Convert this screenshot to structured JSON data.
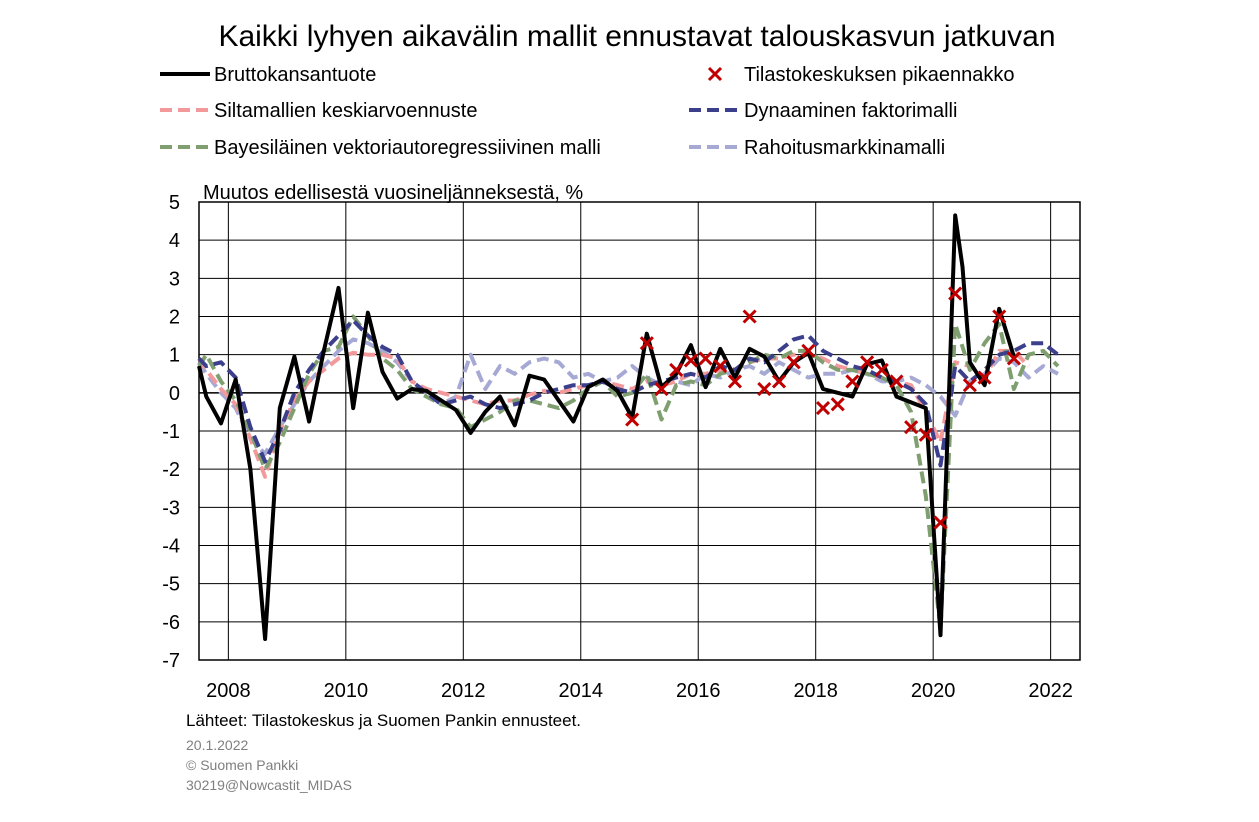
{
  "chart_data": {
    "type": "line",
    "title": "Kaikki lyhyen aikavälin mallit ennustavat talouskasvun jatkuvan",
    "ylabel": "Muutos edellisestä vuosineljänneksestä, %",
    "xlim": [
      2007.5,
      2022.5
    ],
    "ylim": [
      -7,
      5
    ],
    "yticks": [
      5,
      4,
      3,
      2,
      1,
      0,
      -1,
      -2,
      -3,
      -4,
      -5,
      -6,
      -7
    ],
    "xticks": [
      2008,
      2010,
      2012,
      2014,
      2016,
      2018,
      2020,
      2022
    ],
    "grid": true,
    "legend_position": "top",
    "series": [
      {
        "name": "Bruttokansantuote",
        "style": "solid",
        "color": "#000000",
        "x": [
          2007.5,
          2007.625,
          2007.875,
          2008.125,
          2008.375,
          2008.625,
          2008.875,
          2009.125,
          2009.375,
          2009.625,
          2009.875,
          2010.125,
          2010.375,
          2010.625,
          2010.875,
          2011.125,
          2011.375,
          2011.625,
          2011.875,
          2012.125,
          2012.375,
          2012.625,
          2012.875,
          2013.125,
          2013.375,
          2013.625,
          2013.875,
          2014.125,
          2014.375,
          2014.625,
          2014.875,
          2015.125,
          2015.375,
          2015.625,
          2015.875,
          2016.125,
          2016.375,
          2016.625,
          2016.875,
          2017.125,
          2017.375,
          2017.625,
          2017.875,
          2018.125,
          2018.375,
          2018.625,
          2018.875,
          2019.125,
          2019.375,
          2019.625,
          2019.875,
          2020.125,
          2020.375,
          2020.5,
          2020.625,
          2020.875,
          2021.125,
          2021.375
        ],
        "y": [
          0.7,
          -0.1,
          -0.8,
          0.35,
          -2.0,
          -6.45,
          -0.4,
          0.95,
          -0.75,
          1.1,
          2.75,
          -0.4,
          2.1,
          0.55,
          -0.15,
          0.1,
          0.05,
          -0.2,
          -0.45,
          -1.05,
          -0.5,
          -0.1,
          -0.85,
          0.45,
          0.35,
          -0.2,
          -0.75,
          0.15,
          0.35,
          0.05,
          -0.65,
          1.55,
          0.15,
          0.5,
          1.25,
          0.15,
          1.15,
          0.4,
          1.15,
          0.95,
          0.3,
          0.8,
          1.05,
          0.1,
          0.0,
          -0.1,
          0.75,
          0.85,
          -0.1,
          -0.25,
          -0.4,
          -6.35,
          4.65,
          3.3,
          0.8,
          0.2,
          2.2,
          0.95
        ]
      },
      {
        "name": "Siltamallien keskiarvoennuste",
        "style": "dashed",
        "color": "#f4999b",
        "x": [
          2007.5,
          2007.625,
          2007.875,
          2008.125,
          2008.375,
          2008.625,
          2008.875,
          2009.125,
          2009.375,
          2009.625,
          2009.875,
          2010.125,
          2010.375,
          2010.625,
          2010.875,
          2011.125,
          2011.375,
          2011.625,
          2011.875,
          2012.125,
          2012.375,
          2012.625,
          2012.875,
          2013.125,
          2013.375,
          2013.625,
          2013.875,
          2014.125,
          2014.375,
          2014.625,
          2014.875,
          2015.125,
          2015.375,
          2015.625,
          2015.875,
          2016.125,
          2016.375,
          2016.625,
          2016.875,
          2017.125,
          2017.375,
          2017.625,
          2017.875,
          2018.125,
          2018.375,
          2018.625,
          2018.875,
          2019.125,
          2019.375,
          2019.625,
          2019.875,
          2020.125,
          2020.375,
          2020.625,
          2020.875,
          2021.125,
          2021.375,
          2021.625
        ],
        "y": [
          0.9,
          0.6,
          0.1,
          -0.3,
          -1.2,
          -2.2,
          -1.0,
          -0.2,
          0.3,
          0.6,
          0.9,
          1.05,
          1.0,
          1.0,
          0.9,
          0.3,
          0.1,
          0.0,
          -0.1,
          -0.2,
          -0.3,
          -0.2,
          -0.2,
          -0.05,
          0.05,
          0.0,
          0.1,
          0.2,
          0.3,
          0.2,
          0.1,
          0.3,
          0.2,
          0.3,
          0.5,
          0.5,
          0.6,
          0.6,
          0.8,
          0.9,
          0.9,
          1.0,
          1.0,
          0.9,
          0.7,
          0.6,
          0.5,
          0.4,
          0.3,
          0.2,
          -0.5,
          -1.3,
          0.8,
          0.7,
          0.4,
          1.1,
          1.1,
          0.7
        ]
      },
      {
        "name": "Dynaaminen faktorimalli",
        "style": "dashed",
        "color": "#3c3f8c",
        "x": [
          2007.5,
          2007.625,
          2007.875,
          2008.125,
          2008.375,
          2008.625,
          2008.875,
          2009.125,
          2009.375,
          2009.625,
          2009.875,
          2010.125,
          2010.375,
          2010.625,
          2010.875,
          2011.125,
          2011.375,
          2011.625,
          2011.875,
          2012.125,
          2012.375,
          2012.625,
          2012.875,
          2013.125,
          2013.375,
          2013.625,
          2013.875,
          2014.125,
          2014.375,
          2014.625,
          2014.875,
          2015.125,
          2015.375,
          2015.625,
          2015.875,
          2016.125,
          2016.375,
          2016.625,
          2016.875,
          2017.125,
          2017.375,
          2017.625,
          2017.875,
          2018.125,
          2018.375,
          2018.625,
          2018.875,
          2019.125,
          2019.375,
          2019.625,
          2019.875,
          2020.125,
          2020.375,
          2020.625,
          2020.875,
          2021.125,
          2021.375,
          2021.625,
          2021.875,
          2022.125
        ],
        "y": [
          0.9,
          0.7,
          0.8,
          0.4,
          -0.9,
          -1.8,
          -1.0,
          0.0,
          0.6,
          1.1,
          1.5,
          1.9,
          1.5,
          1.2,
          1.0,
          0.3,
          0.0,
          -0.3,
          -0.2,
          -0.1,
          -0.3,
          -0.4,
          -0.3,
          -0.2,
          0.0,
          0.1,
          0.2,
          0.2,
          0.3,
          0.1,
          0.0,
          0.2,
          0.3,
          0.4,
          0.5,
          0.4,
          0.7,
          0.6,
          0.9,
          0.8,
          1.1,
          1.4,
          1.5,
          1.1,
          0.9,
          0.7,
          0.6,
          0.4,
          0.3,
          0.1,
          -0.3,
          -1.9,
          0.7,
          0.3,
          0.6,
          1.0,
          1.1,
          1.3,
          1.3,
          1.0
        ]
      },
      {
        "name": "Bayesiläinen vektoriautoregressiivinen malli",
        "style": "dashed",
        "color": "#7f9f70",
        "x": [
          2007.5,
          2007.625,
          2007.875,
          2008.125,
          2008.375,
          2008.625,
          2008.875,
          2009.125,
          2009.375,
          2009.625,
          2009.875,
          2010.125,
          2010.375,
          2010.625,
          2010.875,
          2011.125,
          2011.375,
          2011.625,
          2011.875,
          2012.125,
          2012.375,
          2012.625,
          2012.875,
          2013.125,
          2013.375,
          2013.625,
          2013.875,
          2014.125,
          2014.375,
          2014.625,
          2014.875,
          2015.125,
          2015.375,
          2015.625,
          2015.875,
          2016.125,
          2016.375,
          2016.625,
          2016.875,
          2017.125,
          2017.375,
          2017.625,
          2017.875,
          2018.125,
          2018.375,
          2018.625,
          2018.875,
          2019.125,
          2019.375,
          2019.625,
          2019.875,
          2020.125,
          2020.375,
          2020.625,
          2020.875,
          2021.125,
          2021.375,
          2021.625,
          2021.875,
          2022.125
        ],
        "y": [
          0.7,
          1.0,
          0.3,
          -0.2,
          -1.0,
          -2.0,
          -1.3,
          -0.4,
          0.5,
          1.1,
          1.2,
          2.0,
          1.5,
          0.9,
          0.6,
          0.1,
          -0.1,
          -0.3,
          -0.4,
          -0.9,
          -0.7,
          -0.5,
          -0.2,
          -0.2,
          -0.3,
          -0.4,
          -0.2,
          0.1,
          0.3,
          -0.1,
          0.0,
          0.5,
          -0.7,
          0.2,
          0.3,
          0.2,
          0.5,
          0.6,
          0.8,
          1.0,
          0.9,
          1.1,
          1.1,
          0.8,
          0.6,
          0.6,
          0.5,
          0.4,
          0.2,
          -0.5,
          -2.7,
          -6.2,
          1.8,
          0.6,
          1.3,
          1.8,
          0.1,
          1.0,
          1.1,
          0.7
        ]
      },
      {
        "name": "Rahoitusmarkkinamalli",
        "style": "dashed",
        "color": "#a6a9d4",
        "x": [
          2007.5,
          2007.625,
          2007.875,
          2008.125,
          2008.375,
          2008.625,
          2008.875,
          2009.125,
          2009.375,
          2009.625,
          2009.875,
          2010.125,
          2010.375,
          2010.625,
          2010.875,
          2011.125,
          2011.375,
          2011.625,
          2011.875,
          2012.125,
          2012.375,
          2012.625,
          2012.875,
          2013.125,
          2013.375,
          2013.625,
          2013.875,
          2014.125,
          2014.375,
          2014.625,
          2014.875,
          2015.125,
          2015.375,
          2015.625,
          2015.875,
          2016.125,
          2016.375,
          2016.625,
          2016.875,
          2017.125,
          2017.375,
          2017.625,
          2017.875,
          2018.125,
          2018.375,
          2018.625,
          2018.875,
          2019.125,
          2019.375,
          2019.625,
          2019.875,
          2020.125,
          2020.375,
          2020.625,
          2020.875,
          2021.125,
          2021.375,
          2021.625,
          2021.875,
          2022.125
        ],
        "y": [
          0.8,
          0.5,
          0.0,
          -0.4,
          -1.2,
          -1.6,
          -0.9,
          -0.3,
          0.3,
          0.7,
          1.1,
          1.4,
          1.3,
          1.1,
          0.8,
          0.3,
          0.0,
          -0.3,
          -0.1,
          1.0,
          0.1,
          0.7,
          0.5,
          0.8,
          0.9,
          0.8,
          0.4,
          0.5,
          0.3,
          0.4,
          0.7,
          0.4,
          0.2,
          0.3,
          0.2,
          0.5,
          0.4,
          0.6,
          0.7,
          0.5,
          0.8,
          0.6,
          0.4,
          0.5,
          0.5,
          0.6,
          0.5,
          0.3,
          0.3,
          0.4,
          0.2,
          -0.1,
          -0.6,
          0.3,
          0.5,
          0.9,
          0.8,
          0.4,
          0.7,
          0.5
        ]
      }
    ],
    "flash_estimates": {
      "name": "Tilastokeskuksen pikaennakko",
      "marker": "x",
      "color": "#c00000",
      "x": [
        2014.875,
        2015.125,
        2015.375,
        2015.625,
        2015.875,
        2016.125,
        2016.375,
        2016.625,
        2016.875,
        2017.125,
        2017.375,
        2017.625,
        2017.875,
        2018.125,
        2018.375,
        2018.625,
        2018.875,
        2019.125,
        2019.375,
        2019.625,
        2019.875,
        2020.125,
        2020.375,
        2020.625,
        2020.875,
        2021.125,
        2021.375
      ],
      "y": [
        -0.7,
        1.3,
        0.1,
        0.6,
        0.85,
        0.9,
        0.7,
        0.3,
        2.0,
        0.1,
        0.3,
        0.8,
        1.1,
        -0.4,
        -0.3,
        0.3,
        0.8,
        0.6,
        0.3,
        -0.9,
        -1.1,
        -3.4,
        2.6,
        0.2,
        0.4,
        2.0,
        0.9
      ]
    }
  },
  "ytick_labels": [
    "5",
    "4",
    "3",
    "2",
    "1",
    "0",
    "-1",
    "-2",
    "-3",
    "-4",
    "-5",
    "-6",
    "-7"
  ],
  "xtick_labels": [
    "2008",
    "2010",
    "2012",
    "2014",
    "2016",
    "2018",
    "2020",
    "2022"
  ],
  "footer": {
    "source": "Lähteet: Tilastokeskus ja Suomen Pankin ennusteet.",
    "date": "20.1.2022",
    "copyright": "© Suomen  Pankki",
    "code": "30219@Nowcastit_MIDAS"
  }
}
